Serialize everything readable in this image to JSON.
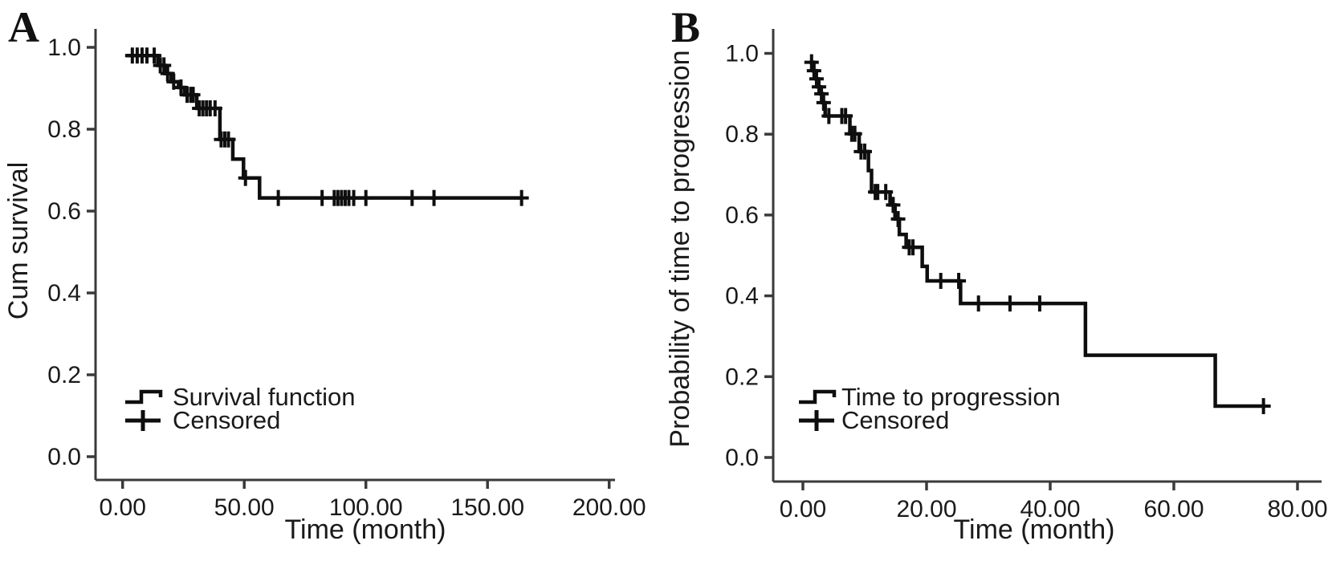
{
  "figure": {
    "background": "#ffffff",
    "colors": {
      "curve": "#0e0e0e",
      "axis": "#3a3a3a",
      "text": "#1a1a1a"
    }
  },
  "chart_data": [
    {
      "type": "line",
      "subtype": "kaplan-meier-step",
      "panel_letter": "A",
      "title": "",
      "xlabel": "Time (month)",
      "ylabel": "Cum survival",
      "xlim": [
        0,
        200
      ],
      "ylim": [
        0.0,
        1.0
      ],
      "grid": false,
      "x_tick_values": [
        0,
        50,
        100,
        150,
        200
      ],
      "x_tick_labels": [
        "0.00",
        "50.00",
        "100.00",
        "150.00",
        "200.00"
      ],
      "y_tick_values": [
        0.0,
        0.2,
        0.4,
        0.6,
        0.8,
        1.0
      ],
      "y_tick_labels": [
        "0.0",
        "0.2",
        "0.4",
        "0.6",
        "0.8",
        "1.0"
      ],
      "legend_position": "lower-left",
      "legend": [
        {
          "glyph": "step",
          "label": "Survival function"
        },
        {
          "glyph": "plus",
          "label": "Censored"
        }
      ],
      "steps": [
        [
          1.5,
          0.98
        ],
        [
          14.5,
          0.956
        ],
        [
          17.5,
          0.936
        ],
        [
          20.0,
          0.916
        ],
        [
          23.0,
          0.902
        ],
        [
          25.5,
          0.884
        ],
        [
          30.5,
          0.851
        ],
        [
          40.0,
          0.775
        ],
        [
          45.3,
          0.727
        ],
        [
          49.7,
          0.681
        ],
        [
          56.3,
          0.632
        ]
      ],
      "end_time": 164.5,
      "censored": [
        [
          4.0,
          0.98
        ],
        [
          6.0,
          0.98
        ],
        [
          8.0,
          0.98
        ],
        [
          10.0,
          0.98
        ],
        [
          13.0,
          0.98
        ],
        [
          15.5,
          0.956
        ],
        [
          17.0,
          0.956
        ],
        [
          18.5,
          0.936
        ],
        [
          21.0,
          0.916
        ],
        [
          24.0,
          0.902
        ],
        [
          26.5,
          0.884
        ],
        [
          28.0,
          0.884
        ],
        [
          29.0,
          0.884
        ],
        [
          31.5,
          0.851
        ],
        [
          33.0,
          0.851
        ],
        [
          34.5,
          0.851
        ],
        [
          36.0,
          0.851
        ],
        [
          38.0,
          0.851
        ],
        [
          40.5,
          0.775
        ],
        [
          42.0,
          0.775
        ],
        [
          43.5,
          0.775
        ],
        [
          50.5,
          0.681
        ],
        [
          64.0,
          0.632
        ],
        [
          82.0,
          0.632
        ],
        [
          87.0,
          0.632
        ],
        [
          88.5,
          0.632
        ],
        [
          90.0,
          0.632
        ],
        [
          91.5,
          0.632
        ],
        [
          93.0,
          0.632
        ],
        [
          95.0,
          0.632
        ],
        [
          100.0,
          0.632
        ],
        [
          119.0,
          0.632
        ],
        [
          128.0,
          0.632
        ],
        [
          164.0,
          0.632
        ]
      ]
    },
    {
      "type": "line",
      "subtype": "kaplan-meier-step",
      "panel_letter": "B",
      "title": "",
      "xlabel": "Time (month)",
      "ylabel": "Probability of time to progression",
      "xlim": [
        0,
        80
      ],
      "ylim": [
        0.0,
        1.0
      ],
      "grid": false,
      "x_tick_values": [
        0,
        20,
        40,
        60,
        80
      ],
      "x_tick_labels": [
        "0.00",
        "20.00",
        "40.00",
        "60.00",
        "80.00"
      ],
      "y_tick_values": [
        0.0,
        0.2,
        0.4,
        0.6,
        0.8,
        1.0
      ],
      "y_tick_labels": [
        "0.0",
        "0.2",
        "0.4",
        "0.6",
        "0.8",
        "1.0"
      ],
      "legend_position": "lower-left",
      "legend": [
        {
          "glyph": "step",
          "label": "Time to progression"
        },
        {
          "glyph": "plus",
          "label": "Censored"
        }
      ],
      "steps": [
        [
          1.1,
          0.978
        ],
        [
          1.7,
          0.957
        ],
        [
          2.1,
          0.937
        ],
        [
          2.4,
          0.917
        ],
        [
          2.8,
          0.9
        ],
        [
          3.2,
          0.878
        ],
        [
          3.6,
          0.845
        ],
        [
          7.6,
          0.801
        ],
        [
          9.1,
          0.757
        ],
        [
          10.6,
          0.71
        ],
        [
          11.1,
          0.657
        ],
        [
          14.1,
          0.625
        ],
        [
          14.9,
          0.59
        ],
        [
          15.6,
          0.552
        ],
        [
          16.7,
          0.52
        ],
        [
          19.3,
          0.473
        ],
        [
          20.1,
          0.437
        ],
        [
          25.5,
          0.381
        ],
        [
          45.7,
          0.253
        ],
        [
          66.7,
          0.127
        ]
      ],
      "end_time": 74.8,
      "censored": [
        [
          1.4,
          0.978
        ],
        [
          1.8,
          0.957
        ],
        [
          2.2,
          0.937
        ],
        [
          2.6,
          0.917
        ],
        [
          3.0,
          0.9
        ],
        [
          3.35,
          0.878
        ],
        [
          4.2,
          0.845
        ],
        [
          6.3,
          0.845
        ],
        [
          6.9,
          0.845
        ],
        [
          7.9,
          0.801
        ],
        [
          8.4,
          0.801
        ],
        [
          9.4,
          0.757
        ],
        [
          10.0,
          0.757
        ],
        [
          11.7,
          0.657
        ],
        [
          12.1,
          0.657
        ],
        [
          13.4,
          0.657
        ],
        [
          14.6,
          0.625
        ],
        [
          15.4,
          0.59
        ],
        [
          17.2,
          0.52
        ],
        [
          17.8,
          0.52
        ],
        [
          22.3,
          0.437
        ],
        [
          25.2,
          0.437
        ],
        [
          28.4,
          0.381
        ],
        [
          33.5,
          0.381
        ],
        [
          38.3,
          0.381
        ],
        [
          74.5,
          0.127
        ]
      ]
    }
  ]
}
